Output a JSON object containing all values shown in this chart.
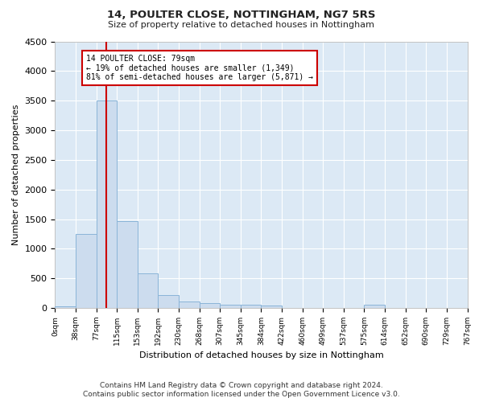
{
  "title1": "14, POULTER CLOSE, NOTTINGHAM, NG7 5RS",
  "title2": "Size of property relative to detached houses in Nottingham",
  "xlabel": "Distribution of detached houses by size in Nottingham",
  "ylabel": "Number of detached properties",
  "footnote1": "Contains HM Land Registry data © Crown copyright and database right 2024.",
  "footnote2": "Contains public sector information licensed under the Open Government Licence v3.0.",
  "bin_labels": [
    "0sqm",
    "38sqm",
    "77sqm",
    "115sqm",
    "153sqm",
    "192sqm",
    "230sqm",
    "268sqm",
    "307sqm",
    "345sqm",
    "384sqm",
    "422sqm",
    "460sqm",
    "499sqm",
    "537sqm",
    "575sqm",
    "614sqm",
    "652sqm",
    "690sqm",
    "729sqm",
    "767sqm"
  ],
  "bar_values": [
    30,
    1250,
    3500,
    1470,
    580,
    220,
    110,
    80,
    55,
    50,
    45,
    0,
    0,
    0,
    0,
    50,
    0,
    0,
    0,
    0
  ],
  "bar_color": "#ccdcee",
  "bar_edge_color": "#8ab4d8",
  "property_line_bin": 2,
  "property_line_color": "#cc0000",
  "annotation_text": "14 POULTER CLOSE: 79sqm\n← 19% of detached houses are smaller (1,349)\n81% of semi-detached houses are larger (5,871) →",
  "annotation_box_color": "#ffffff",
  "annotation_box_edge_color": "#cc0000",
  "ylim": [
    0,
    4500
  ],
  "yticks": [
    0,
    500,
    1000,
    1500,
    2000,
    2500,
    3000,
    3500,
    4000,
    4500
  ],
  "grid_color": "#ffffff",
  "background_color": "#dce9f5",
  "title1_fontsize": 9.5,
  "title2_fontsize": 8,
  "footnote_fontsize": 6.5
}
